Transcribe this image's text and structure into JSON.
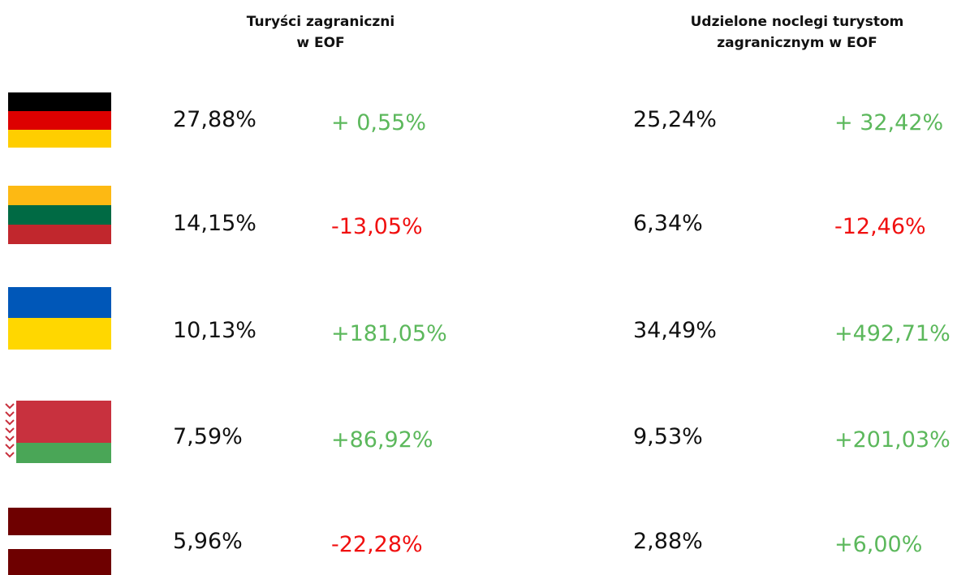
{
  "headers": [
    [
      "Turyści zagraniczni",
      "w EOF"
    ],
    [
      "Udzielone noclegi turystom",
      "zagranicznym w EOF"
    ]
  ],
  "rows": [
    [
      "27,88%",
      "+ 0,55%",
      "25,24%",
      "+ 32,42%"
    ],
    [
      "14,15%",
      "-13,05%",
      "6,34%",
      "-12,46%"
    ],
    [
      "10,13%",
      "+181,05%",
      "34,49%",
      "+492,71%"
    ],
    [
      "7,59%",
      "+86,92%",
      "9,53%",
      "+201,03%"
    ],
    [
      "5,96%",
      "-22,28%",
      "2,88%",
      "+6,00%"
    ]
  ]
}
